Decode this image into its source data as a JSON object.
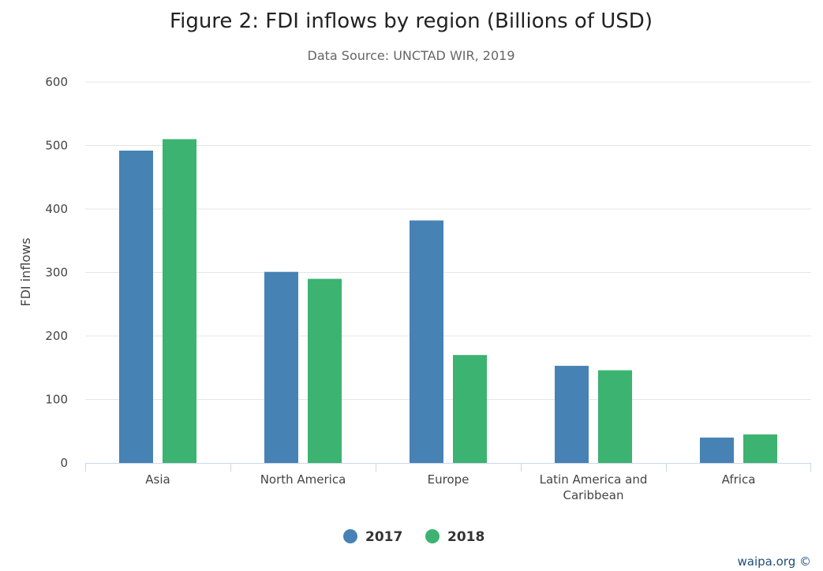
{
  "chart_data": {
    "type": "bar",
    "title": "Figure 2: FDI inflows by region (Billions of USD)",
    "subtitle": "Data Source: UNCTAD WIR, 2019",
    "xlabel": "",
    "ylabel": "FDI inflows",
    "ylim": [
      0,
      600
    ],
    "yticks": [
      0,
      100,
      200,
      300,
      400,
      500,
      600
    ],
    "grid": true,
    "legend_position": "bottom-center",
    "categories": [
      [
        "Asia"
      ],
      [
        "North America"
      ],
      [
        "Europe"
      ],
      [
        "Latin America and",
        "Caribbean"
      ],
      [
        "Africa"
      ]
    ],
    "series": [
      {
        "name": "2017",
        "color": "#4682b4",
        "values": [
          492,
          301,
          382,
          153,
          40
        ]
      },
      {
        "name": "2018",
        "color": "#3cb371",
        "values": [
          510,
          290,
          170,
          146,
          45
        ]
      }
    ]
  },
  "credits": "waipa.org ©"
}
